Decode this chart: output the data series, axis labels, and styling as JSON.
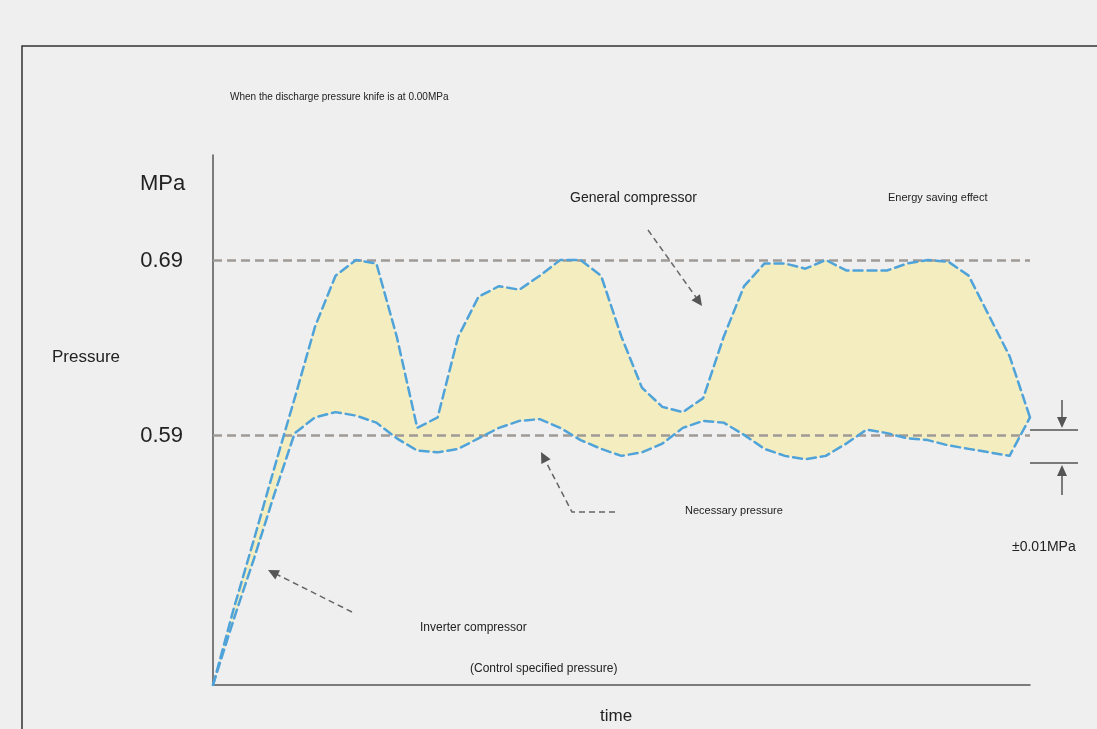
{
  "chart_data": {
    "type": "line",
    "title": "When the discharge pressure knife is at 0.00MPa",
    "xlabel": "time",
    "ylabel": "Pressure",
    "categories": [
      null,
      null,
      null,
      null,
      null,
      null,
      null,
      null,
      null,
      null,
      null,
      null,
      null,
      null,
      null,
      null,
      null,
      null,
      null,
      null,
      null,
      null,
      null,
      null,
      null,
      null,
      null,
      null,
      null,
      null,
      null,
      null,
      null,
      null,
      null,
      null,
      null,
      null,
      null,
      null,
      null
    ],
    "series": [
      {
        "color": "#4fa3d8",
        "values": [
          0.447,
          0.49,
          0.53,
          0.571,
          0.611,
          0.652,
          0.681,
          0.69,
          0.688,
          0.646,
          0.594,
          0.6,
          0.646,
          0.669,
          0.675,
          0.673,
          0.681,
          0.69,
          0.69,
          0.681,
          0.646,
          0.617,
          0.606,
          0.603,
          0.611,
          0.646,
          0.675,
          0.688,
          0.688,
          0.685,
          0.69,
          0.684,
          0.684,
          0.684,
          0.688,
          0.69,
          0.689,
          0.681,
          0.658,
          0.635,
          0.6
        ],
        "upper": [
          0.447,
          0.49,
          0.53,
          0.571,
          0.611,
          0.652,
          0.681,
          0.69,
          0.688,
          0.646,
          0.594,
          0.6,
          0.646,
          0.669,
          0.675,
          0.673,
          0.681,
          0.69,
          0.69,
          0.681,
          0.646,
          0.617,
          0.606,
          0.603,
          0.611,
          0.646,
          0.675,
          0.688,
          0.688,
          0.685,
          0.69,
          0.684,
          0.684,
          0.684,
          0.688,
          0.69,
          0.689,
          0.681,
          0.658,
          0.635,
          0.6
        ],
        "lower": [
          0.447,
          0.484,
          0.519,
          0.556,
          0.591,
          0.6,
          0.603,
          0.601,
          0.597,
          0.588,
          0.581,
          0.58,
          0.582,
          0.588,
          0.594,
          0.598,
          0.599,
          0.594,
          0.587,
          0.582,
          0.578,
          0.58,
          0.585,
          0.594,
          0.598,
          0.597,
          0.59,
          0.582,
          0.578,
          0.576,
          0.578,
          0.585,
          0.593,
          0.591,
          0.588,
          0.587,
          0.584,
          0.582,
          0.58,
          0.578,
          0.6
        ]
      },
      {
        "color": "#4fa3d8",
        "values": [
          0.447,
          0.484,
          0.519,
          0.556,
          0.591,
          0.6,
          0.603,
          0.601,
          0.597,
          0.588,
          0.581,
          0.58,
          0.582,
          0.588,
          0.594,
          0.598,
          0.599,
          0.594,
          0.587,
          0.582,
          0.578,
          0.58,
          0.585,
          0.594,
          0.598,
          0.597,
          0.59,
          0.582,
          0.578,
          0.576,
          0.578,
          0.585,
          0.593,
          0.591,
          0.588,
          0.587,
          0.584,
          0.582,
          0.58,
          0.578,
          0.6
        ]
      }
    ],
    "ylim": [
      0.447,
      0.75
    ],
    "yticks": [
      0.59,
      0.69
    ],
    "ref_lines": [
      {
        "axis": "y",
        "value": 0.59,
        "color": "#a09a96",
        "line_style": "dashed"
      },
      {
        "axis": "y",
        "value": 0.69,
        "color": "#a09a96",
        "line_style": "dashed"
      }
    ],
    "line_style": "dashed",
    "marker": "none",
    "grid": false,
    "annotations": [
      "MPa",
      "General compressor",
      "Energy saving effect",
      "Necessary pressure",
      "Inverter compressor",
      "(Control specified pressure)",
      "±0.01MPa"
    ]
  }
}
